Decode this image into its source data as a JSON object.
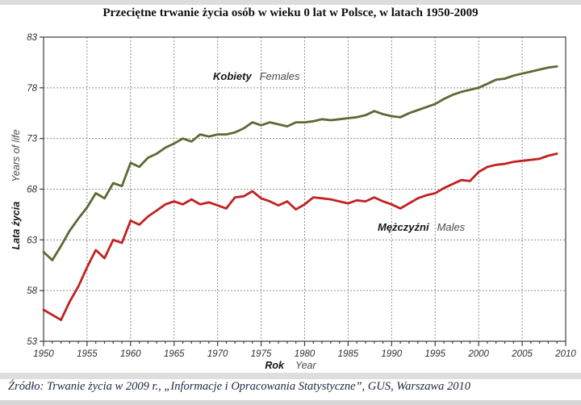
{
  "title": "Przeciętne trwanie życia osób w wieku 0 lat w Polsce, w latach 1950-2009",
  "source": "Źródło: Trwanie życia w 2009 r., „Informacje i Opracowania Statystyczne”, GUS, Warszawa 2010",
  "axis": {
    "y_pl": "Lata życia",
    "y_en": "Years of life",
    "x_pl": "Rok",
    "x_en": "Year"
  },
  "labels": {
    "females_pl": "Kobiety",
    "females_en": "Females",
    "males_pl": "Mężczyźni",
    "males_en": "Males"
  },
  "colors": {
    "females": "#5a6b33",
    "males": "#c22121",
    "grid": "#8f8f8f",
    "axis": "#3e3e3e",
    "text": "#2e2e2e"
  },
  "chart_data": {
    "type": "line",
    "title": "Przeciętne trwanie życia osób w wieku 0 lat w Polsce, w latach 1950-2009",
    "xlabel": "Rok (Year)",
    "ylabel": "Lata życia (Years of life)",
    "xlim": [
      1950,
      2010
    ],
    "ylim": [
      53,
      83
    ],
    "x_ticks": [
      1950,
      1955,
      1960,
      1965,
      1970,
      1975,
      1980,
      1985,
      1990,
      1995,
      2000,
      2005,
      2010
    ],
    "y_ticks": [
      53,
      58,
      63,
      68,
      73,
      78,
      83
    ],
    "grid": true,
    "legend_position": "inline-labels",
    "years": [
      1950,
      1951,
      1952,
      1953,
      1954,
      1955,
      1956,
      1957,
      1958,
      1959,
      1960,
      1961,
      1962,
      1963,
      1964,
      1965,
      1966,
      1967,
      1968,
      1969,
      1970,
      1971,
      1972,
      1973,
      1974,
      1975,
      1976,
      1977,
      1978,
      1979,
      1980,
      1981,
      1982,
      1983,
      1984,
      1985,
      1986,
      1987,
      1988,
      1989,
      1990,
      1991,
      1992,
      1993,
      1994,
      1995,
      1996,
      1997,
      1998,
      1999,
      2000,
      2001,
      2002,
      2003,
      2004,
      2005,
      2006,
      2007,
      2008,
      2009
    ],
    "series": [
      {
        "name": "Kobiety (Females)",
        "color": "#5a6b33",
        "values": [
          61.8,
          61.0,
          62.4,
          63.9,
          65.1,
          66.2,
          67.6,
          67.1,
          68.6,
          68.3,
          70.6,
          70.2,
          71.1,
          71.5,
          72.1,
          72.5,
          73.0,
          72.7,
          73.4,
          73.2,
          73.4,
          73.4,
          73.6,
          74.0,
          74.6,
          74.3,
          74.6,
          74.4,
          74.2,
          74.6,
          74.6,
          74.7,
          74.9,
          74.8,
          74.9,
          75.0,
          75.1,
          75.3,
          75.7,
          75.4,
          75.2,
          75.1,
          75.5,
          75.8,
          76.1,
          76.4,
          76.9,
          77.3,
          77.6,
          77.8,
          78.0,
          78.4,
          78.8,
          78.9,
          79.2,
          79.4,
          79.6,
          79.8,
          80.0,
          80.1
        ]
      },
      {
        "name": "Mężczyźni (Males)",
        "color": "#c22121",
        "values": [
          56.1,
          55.6,
          55.1,
          56.9,
          58.4,
          60.3,
          62.0,
          61.2,
          63.0,
          62.7,
          64.9,
          64.5,
          65.3,
          65.9,
          66.5,
          66.8,
          66.5,
          67.0,
          66.5,
          66.7,
          66.4,
          66.1,
          67.2,
          67.3,
          67.8,
          67.1,
          66.8,
          66.4,
          66.8,
          66.0,
          66.5,
          67.2,
          67.1,
          67.0,
          66.8,
          66.6,
          66.9,
          66.8,
          67.2,
          66.8,
          66.5,
          66.1,
          66.6,
          67.1,
          67.4,
          67.6,
          68.1,
          68.5,
          68.9,
          68.8,
          69.7,
          70.2,
          70.4,
          70.5,
          70.7,
          70.8,
          70.9,
          71.0,
          71.3,
          71.5
        ]
      }
    ]
  }
}
